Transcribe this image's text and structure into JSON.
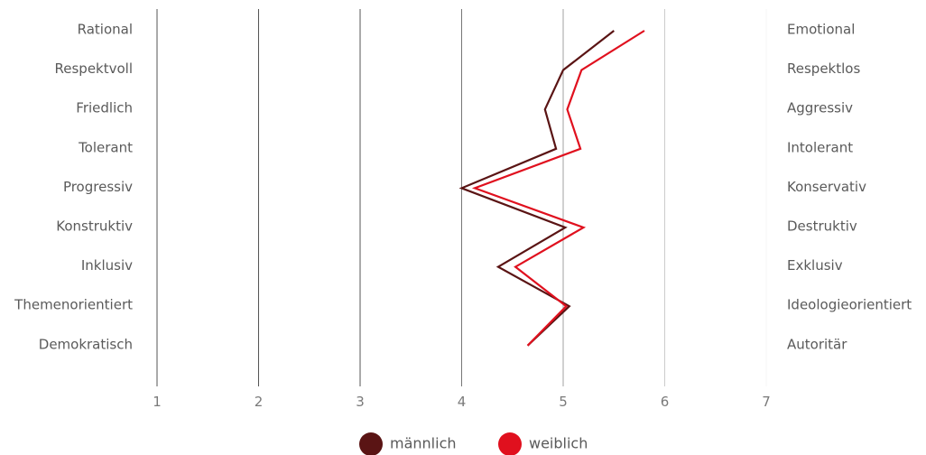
{
  "chart_data": {
    "type": "line",
    "orientation": "horizontal-profile",
    "x_axis": {
      "ticks": [
        "1",
        "2",
        "3",
        "4",
        "5",
        "6",
        "7"
      ],
      "range": [
        1,
        7
      ]
    },
    "categories_left": [
      "Rational",
      "Respektvoll",
      "Friedlich",
      "Tolerant",
      "Progressiv",
      "Konstruktiv",
      "Inklusiv",
      "Themenorientiert",
      "Demokratisch"
    ],
    "categories_right": [
      "Emotional",
      "Respektlos",
      "Aggressiv",
      "Intolerant",
      "Konservativ",
      "Destruktiv",
      "Exklusiv",
      "Ideologieorientiert",
      "Autoritär"
    ],
    "series": [
      {
        "name": "männlich",
        "color": "#5a1414",
        "values": [
          5.5,
          5.0,
          4.82,
          4.93,
          4.0,
          5.02,
          4.36,
          5.06,
          4.65
        ]
      },
      {
        "name": "weiblich",
        "color": "#e0101e",
        "values": [
          5.8,
          5.18,
          5.04,
          5.17,
          4.13,
          5.2,
          4.53,
          5.03,
          4.65
        ]
      }
    ],
    "legend_position": "bottom-center",
    "grid": true
  }
}
